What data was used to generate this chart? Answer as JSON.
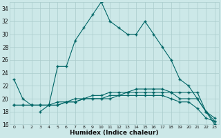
{
  "xlabel": "Humidex (Indice chaleur)",
  "bg_color": "#cce8e8",
  "line_color": "#006666",
  "grid_color": "#aacccc",
  "xlim": [
    -0.5,
    23.5
  ],
  "ylim": [
    16,
    35
  ],
  "yticks": [
    16,
    18,
    20,
    22,
    24,
    26,
    28,
    30,
    32,
    34
  ],
  "xticks": [
    0,
    1,
    2,
    3,
    4,
    5,
    6,
    7,
    8,
    9,
    10,
    11,
    12,
    13,
    14,
    15,
    16,
    17,
    18,
    19,
    20,
    21,
    22,
    23
  ],
  "line1_x": [
    0,
    1,
    2,
    3,
    4,
    5,
    6,
    7,
    8,
    9,
    10,
    11,
    12,
    13,
    14,
    15,
    16,
    17,
    18,
    19,
    20,
    21,
    22,
    23
  ],
  "line1_y": [
    23,
    20,
    19,
    19,
    19,
    25,
    25,
    29,
    31,
    33,
    35,
    32,
    31,
    30,
    30,
    32,
    30,
    28,
    26,
    23,
    22,
    20,
    18,
    16
  ],
  "line2_x": [
    0,
    1,
    2,
    3,
    4,
    5,
    6,
    7,
    8,
    9,
    10,
    11,
    12,
    13,
    14,
    15,
    16,
    17,
    18,
    19,
    20,
    21,
    22,
    23
  ],
  "line2_y": [
    19,
    19,
    19,
    19,
    19,
    19,
    19.5,
    19.5,
    20,
    20,
    20,
    20.5,
    20.5,
    21,
    21,
    21,
    21,
    21,
    21,
    21,
    21,
    21,
    18,
    16.5
  ],
  "line3_x": [
    0,
    1,
    2,
    3,
    4,
    5,
    6,
    7,
    8,
    9,
    10,
    11,
    12,
    13,
    14,
    15,
    16,
    17,
    18,
    19,
    20,
    21,
    22,
    23
  ],
  "line3_y": [
    19,
    19,
    19,
    19,
    19,
    19.5,
    19.5,
    20,
    20,
    20.5,
    20.5,
    21,
    21,
    21,
    21.5,
    21.5,
    21.5,
    21.5,
    21,
    20,
    20,
    20,
    18,
    17
  ],
  "line4_x": [
    3,
    4,
    5,
    6,
    7,
    8,
    9,
    10,
    11,
    12,
    13,
    14,
    15,
    16,
    17,
    18,
    19,
    20,
    21,
    22,
    23
  ],
  "line4_y": [
    18,
    19,
    19,
    19.5,
    19.5,
    20,
    20,
    20,
    20,
    20.5,
    20.5,
    20.5,
    20.5,
    20.5,
    20.5,
    20,
    19.5,
    19.5,
    18.5,
    17,
    16.5
  ]
}
